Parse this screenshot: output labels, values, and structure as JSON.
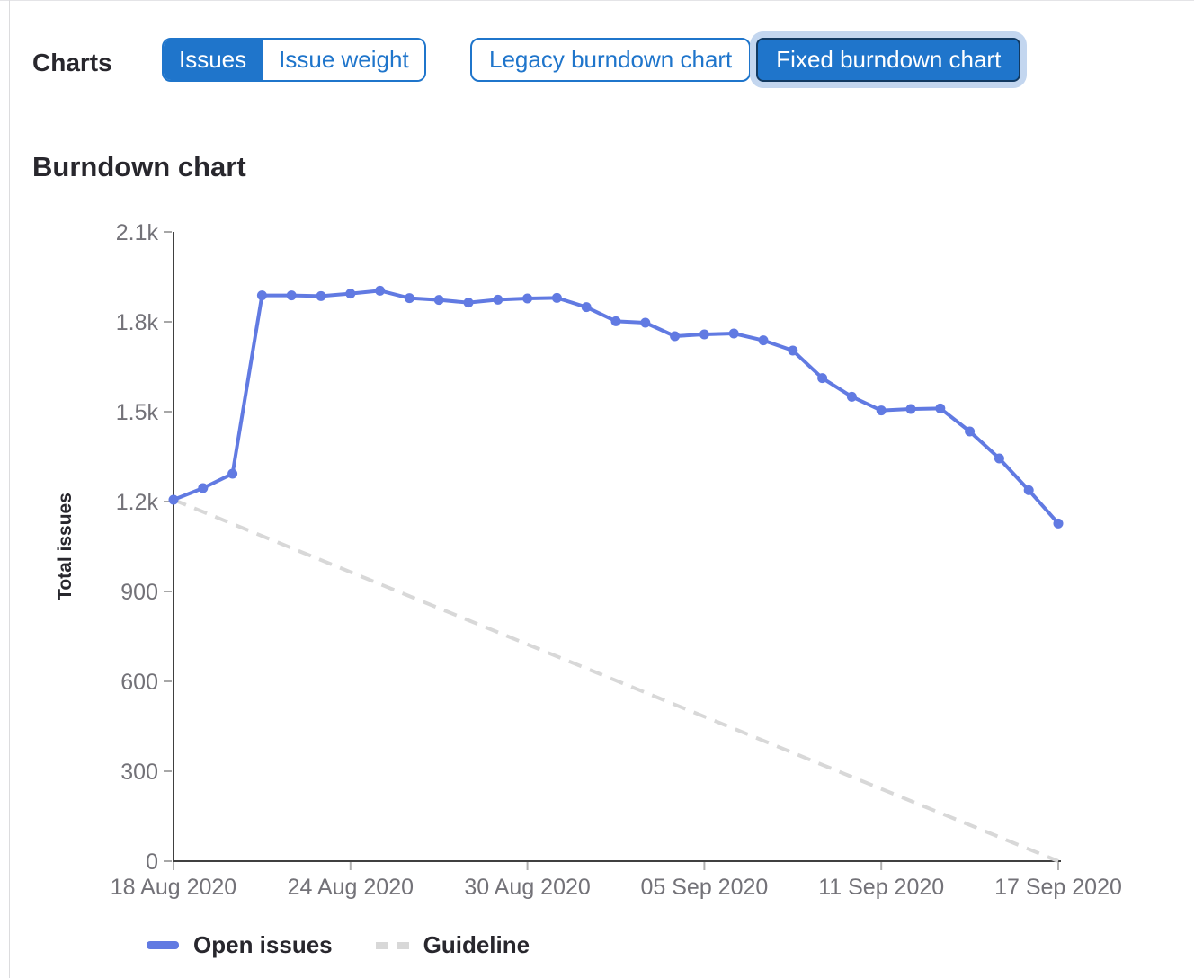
{
  "page": {
    "charts_label": "Charts",
    "chart_title": "Burndown chart"
  },
  "toolbar": {
    "issue_toggle": [
      {
        "label": "Issues",
        "selected": true
      },
      {
        "label": "Issue weight",
        "selected": false
      }
    ],
    "chart_type_toggle": [
      {
        "label": "Legacy burndown chart",
        "selected": false
      },
      {
        "label": "Fixed burndown chart",
        "selected": true
      }
    ]
  },
  "colors": {
    "accent_blue": "#1f75cb",
    "selected_border": "#123a62",
    "focus_halo": "#c3d6ef",
    "series_blue": "#617ae2",
    "guideline_gray": "#d8d8d8",
    "axis_line": "#404040",
    "tick_text": "#737278",
    "heading_text": "#28272d"
  },
  "legend": {
    "open_issues": "Open issues",
    "guideline": "Guideline"
  },
  "chart_data": {
    "type": "line",
    "title": "Burndown chart",
    "xlabel": "",
    "ylabel": "Total issues",
    "ylim": [
      0,
      2100
    ],
    "grid": false,
    "legend_position": "bottom",
    "y_ticks": [
      0,
      300,
      600,
      900,
      1200,
      1500,
      1800,
      2100
    ],
    "y_tick_labels": [
      "0",
      "300",
      "600",
      "900",
      "1.2k",
      "1.5k",
      "1.8k",
      "2.1k"
    ],
    "x": [
      "18 Aug 2020",
      "19 Aug 2020",
      "20 Aug 2020",
      "21 Aug 2020",
      "22 Aug 2020",
      "23 Aug 2020",
      "24 Aug 2020",
      "25 Aug 2020",
      "26 Aug 2020",
      "27 Aug 2020",
      "28 Aug 2020",
      "29 Aug 2020",
      "30 Aug 2020",
      "31 Aug 2020",
      "01 Sep 2020",
      "02 Sep 2020",
      "03 Sep 2020",
      "04 Sep 2020",
      "05 Sep 2020",
      "06 Sep 2020",
      "07 Sep 2020",
      "08 Sep 2020",
      "09 Sep 2020",
      "10 Sep 2020",
      "11 Sep 2020",
      "12 Sep 2020",
      "13 Sep 2020",
      "14 Sep 2020",
      "15 Sep 2020",
      "16 Sep 2020",
      "17 Sep 2020"
    ],
    "x_tick_indices": [
      0,
      6,
      12,
      18,
      24,
      30
    ],
    "x_tick_labels": [
      "18 Aug 2020",
      "24 Aug 2020",
      "30 Aug 2020",
      "05 Sep 2020",
      "11 Sep 2020",
      "17 Sep 2020"
    ],
    "series": [
      {
        "name": "Open issues",
        "color": "#617ae2",
        "values": [
          1206,
          1245,
          1293,
          1888,
          1888,
          1886,
          1894,
          1904,
          1879,
          1873,
          1864,
          1874,
          1878,
          1880,
          1849,
          1802,
          1797,
          1752,
          1758,
          1761,
          1738,
          1704,
          1612,
          1550,
          1504,
          1509,
          1511,
          1434,
          1344,
          1238,
          1127
        ]
      }
    ],
    "guideline": {
      "name": "Guideline",
      "color": "#d8d8d8",
      "start": 1206,
      "end": 0
    }
  }
}
